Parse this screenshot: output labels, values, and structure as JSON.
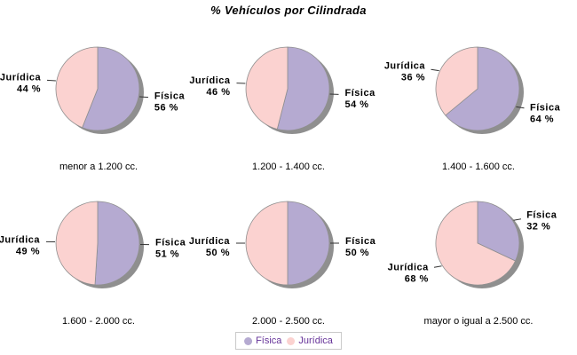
{
  "chart_data": {
    "type": "pie",
    "title": "% Vehículos por Cilindrada",
    "layout": "2x3 small multiples",
    "start_angle": "12 o'clock, clockwise",
    "label_format": "{value} %",
    "legend": {
      "position": "bottom-center",
      "entries": [
        "Física",
        "Jurídica"
      ]
    },
    "series_colors": {
      "Física": "#b5aad1",
      "Jurídica": "#fbd2d0"
    },
    "style_colors": {
      "shadow": "#8f8f8f",
      "slice_outline": "#8f8f8f",
      "leader_line": "#333333",
      "legend_text": "#663399",
      "legend_border": "#c9c9c9"
    },
    "charts": [
      {
        "caption": "menor a 1.200 cc.",
        "slices": [
          {
            "name": "Física",
            "value": 56
          },
          {
            "name": "Jurídica",
            "value": 44
          }
        ]
      },
      {
        "caption": "1.200 - 1.400 cc.",
        "slices": [
          {
            "name": "Física",
            "value": 54
          },
          {
            "name": "Jurídica",
            "value": 46
          }
        ]
      },
      {
        "caption": "1.400 - 1.600 cc.",
        "slices": [
          {
            "name": "Física",
            "value": 64
          },
          {
            "name": "Jurídica",
            "value": 36
          }
        ]
      },
      {
        "caption": "1.600 - 2.000 cc.",
        "slices": [
          {
            "name": "Física",
            "value": 51
          },
          {
            "name": "Jurídica",
            "value": 49
          }
        ]
      },
      {
        "caption": "2.000 - 2.500 cc.",
        "slices": [
          {
            "name": "Física",
            "value": 50
          },
          {
            "name": "Jurídica",
            "value": 50
          }
        ]
      },
      {
        "caption": "mayor o igual a 2.500 cc.",
        "slices": [
          {
            "name": "Física",
            "value": 32
          },
          {
            "name": "Jurídica",
            "value": 68
          }
        ]
      }
    ]
  }
}
